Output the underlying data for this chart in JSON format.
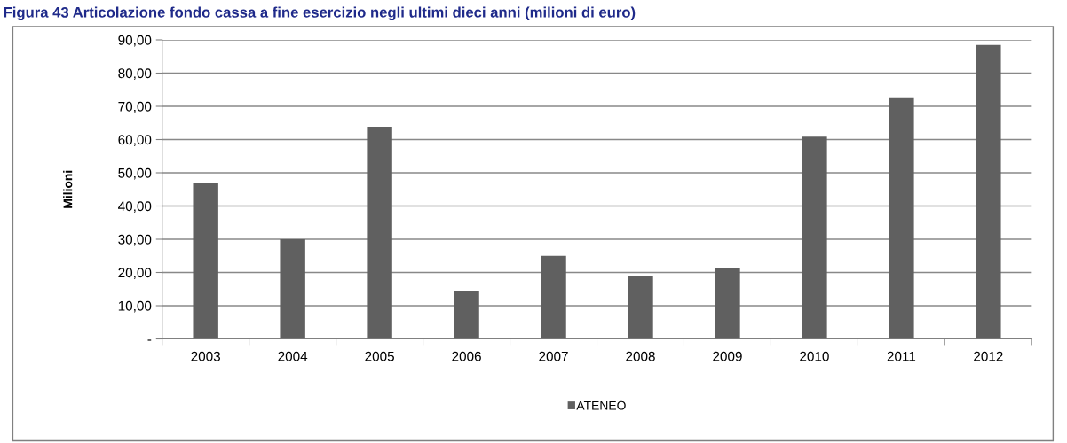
{
  "chart_data": {
    "type": "bar",
    "title": "Figura 43 Articolazione fondo cassa a fine esercizio negli ultimi dieci anni (milioni di euro)",
    "ylabel": "Milioni",
    "categories": [
      "2003",
      "2004",
      "2005",
      "2006",
      "2007",
      "2008",
      "2009",
      "2010",
      "2011",
      "2012"
    ],
    "series": [
      {
        "name": "ATENEO",
        "color": "#606060",
        "values": [
          47.0,
          30.0,
          63.9,
          14.3,
          25.0,
          19.0,
          21.5,
          60.9,
          72.5,
          88.5
        ]
      }
    ],
    "ylim": [
      0,
      90
    ],
    "yticks": [
      {
        "value": 0,
        "label": "-"
      },
      {
        "value": 10,
        "label": "10,00"
      },
      {
        "value": 20,
        "label": "20,00"
      },
      {
        "value": 30,
        "label": "30,00"
      },
      {
        "value": 40,
        "label": "40,00"
      },
      {
        "value": 50,
        "label": "50,00"
      },
      {
        "value": 60,
        "label": "60,00"
      },
      {
        "value": 70,
        "label": "70,00"
      },
      {
        "value": 80,
        "label": "80,00"
      },
      {
        "value": 90,
        "label": "90,00"
      }
    ],
    "grid": "y",
    "legend": "bottom"
  }
}
